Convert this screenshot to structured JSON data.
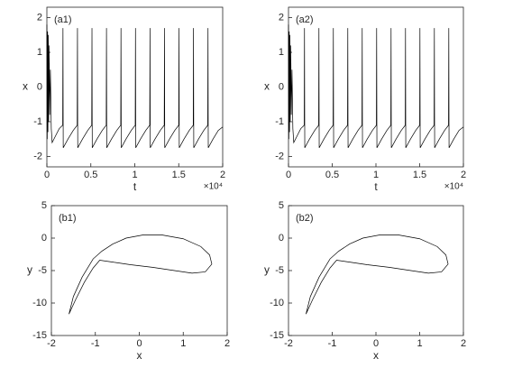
{
  "chart_data": [
    {
      "type": "line",
      "label": "(a1)",
      "xlabel": "t",
      "ylabel": "x",
      "x_multiplier": "×10⁴",
      "color": "#000000",
      "xlim": [
        0,
        20000
      ],
      "ylim": [
        -2.3,
        2.3
      ],
      "xticks": [
        0,
        {
          "value": 5000,
          "label": "0.5"
        },
        {
          "value": 10000,
          "label": "1"
        },
        {
          "value": 15000,
          "label": "1.5"
        },
        {
          "value": 20000,
          "label": "2"
        }
      ],
      "yticks": [
        -2,
        -1,
        0,
        1,
        2
      ],
      "x": [
        0,
        40,
        80,
        120,
        160,
        200,
        260,
        320,
        400,
        500,
        600,
        1000,
        1400,
        1800,
        1830,
        1860,
        2400,
        3000,
        3450,
        3480,
        3510,
        4050,
        4650,
        5100,
        5130,
        5160,
        5700,
        6300,
        6750,
        6780,
        6810,
        7350,
        7950,
        8400,
        8430,
        8460,
        9000,
        9600,
        10050,
        10080,
        10110,
        10650,
        11250,
        11700,
        11730,
        11760,
        12300,
        12900,
        13350,
        13380,
        13410,
        13950,
        14550,
        15000,
        15030,
        15060,
        15600,
        16200,
        16650,
        16680,
        16710,
        17250,
        17850,
        18300,
        18330,
        18360,
        18900,
        19500,
        20000
      ],
      "values": [
        1.8,
        -1.5,
        1.6,
        -1.3,
        1.5,
        -1.0,
        1.2,
        -0.8,
        0.5,
        -1.2,
        -1.6,
        -1.4,
        -1.2,
        -1.1,
        1.7,
        -1.75,
        -1.5,
        -1.25,
        -1.1,
        1.7,
        -1.75,
        -1.5,
        -1.25,
        -1.1,
        1.7,
        -1.75,
        -1.5,
        -1.25,
        -1.1,
        1.7,
        -1.75,
        -1.5,
        -1.25,
        -1.1,
        1.7,
        -1.75,
        -1.5,
        -1.25,
        -1.1,
        1.7,
        -1.75,
        -1.5,
        -1.25,
        -1.1,
        1.7,
        -1.75,
        -1.5,
        -1.25,
        -1.1,
        1.7,
        -1.75,
        -1.5,
        -1.25,
        -1.1,
        1.7,
        -1.75,
        -1.5,
        -1.25,
        -1.1,
        1.7,
        -1.75,
        -1.5,
        -1.25,
        -1.1,
        1.7,
        -1.75,
        -1.5,
        -1.25,
        -1.15
      ]
    },
    {
      "type": "line",
      "label": "(a2)",
      "xlabel": "t",
      "ylabel": "x",
      "x_multiplier": "×10⁴",
      "color": "#000000",
      "xlim": [
        0,
        20000
      ],
      "ylim": [
        -2.3,
        2.3
      ],
      "xticks": [
        0,
        {
          "value": 5000,
          "label": "0.5"
        },
        {
          "value": 10000,
          "label": "1"
        },
        {
          "value": 15000,
          "label": "1.5"
        },
        {
          "value": 20000,
          "label": "2"
        }
      ],
      "yticks": [
        -2,
        -1,
        0,
        1,
        2
      ],
      "x": [
        0,
        40,
        80,
        120,
        160,
        200,
        260,
        320,
        400,
        500,
        600,
        1000,
        1400,
        1800,
        1830,
        1860,
        2400,
        3000,
        3450,
        3480,
        3510,
        4050,
        4650,
        5100,
        5130,
        5160,
        5700,
        6300,
        6750,
        6780,
        6810,
        7350,
        7950,
        8400,
        8430,
        8460,
        9000,
        9600,
        10050,
        10080,
        10110,
        10650,
        11250,
        11700,
        11730,
        11760,
        12300,
        12900,
        13350,
        13380,
        13410,
        13950,
        14550,
        15000,
        15030,
        15060,
        15600,
        16200,
        16650,
        16680,
        16710,
        17250,
        17850,
        18300,
        18330,
        18360,
        18900,
        19500,
        20000
      ],
      "values": [
        1.8,
        -1.5,
        1.6,
        -1.3,
        1.5,
        -1.0,
        1.2,
        -0.8,
        0.5,
        -1.2,
        -1.6,
        -1.4,
        -1.2,
        -1.1,
        1.7,
        -1.75,
        -1.5,
        -1.25,
        -1.1,
        1.7,
        -1.75,
        -1.5,
        -1.25,
        -1.1,
        1.7,
        -1.75,
        -1.5,
        -1.25,
        -1.1,
        1.7,
        -1.75,
        -1.5,
        -1.25,
        -1.1,
        1.7,
        -1.75,
        -1.5,
        -1.25,
        -1.1,
        1.7,
        -1.75,
        -1.5,
        -1.25,
        -1.1,
        1.7,
        -1.75,
        -1.5,
        -1.25,
        -1.1,
        1.7,
        -1.75,
        -1.5,
        -1.25,
        -1.1,
        1.7,
        -1.75,
        -1.5,
        -1.25,
        -1.1,
        1.7,
        -1.75,
        -1.5,
        -1.25,
        -1.1,
        1.7,
        -1.75,
        -1.5,
        -1.25,
        -1.15
      ]
    },
    {
      "type": "line",
      "label": "(b1)",
      "xlabel": "x",
      "ylabel": "y",
      "color": "#000000",
      "xlim": [
        -2,
        2
      ],
      "ylim": [
        -15,
        5
      ],
      "xticks": [
        -2,
        -1,
        0,
        1,
        2
      ],
      "yticks": [
        -15,
        -10,
        -5,
        0,
        5
      ],
      "x": [
        -1.6,
        -1.45,
        -1.25,
        -1.05,
        -0.9,
        -0.6,
        -0.2,
        0.3,
        0.8,
        1.2,
        1.5,
        1.65,
        1.6,
        1.4,
        1.0,
        0.5,
        0.1,
        -0.3,
        -0.6,
        -0.85,
        -1.05,
        -1.3,
        -1.5,
        -1.6
      ],
      "values": [
        -11.7,
        -9.5,
        -6.8,
        -4.6,
        -3.4,
        -3.7,
        -4.1,
        -4.5,
        -5.0,
        -5.4,
        -5.2,
        -4.0,
        -2.6,
        -1.3,
        -0.1,
        0.5,
        0.5,
        0.0,
        -0.9,
        -2.0,
        -3.2,
        -6.0,
        -9.0,
        -11.7
      ]
    },
    {
      "type": "line",
      "label": "(b2)",
      "xlabel": "x",
      "ylabel": "y",
      "color": "#000000",
      "xlim": [
        -2,
        2
      ],
      "ylim": [
        -15,
        5
      ],
      "xticks": [
        -2,
        -1,
        0,
        1,
        2
      ],
      "yticks": [
        -15,
        -10,
        -5,
        0,
        5
      ],
      "x": [
        -1.6,
        -1.45,
        -1.25,
        -1.05,
        -0.9,
        -0.6,
        -0.2,
        0.3,
        0.8,
        1.2,
        1.5,
        1.65,
        1.6,
        1.4,
        1.0,
        0.5,
        0.1,
        -0.3,
        -0.6,
        -0.85,
        -1.05,
        -1.3,
        -1.5,
        -1.6
      ],
      "values": [
        -11.7,
        -9.5,
        -6.8,
        -4.6,
        -3.4,
        -3.7,
        -4.1,
        -4.5,
        -5.0,
        -5.4,
        -5.2,
        -4.0,
        -2.6,
        -1.3,
        -0.1,
        0.5,
        0.5,
        0.0,
        -0.9,
        -2.0,
        -3.2,
        -6.0,
        -9.0,
        -11.7
      ]
    }
  ]
}
